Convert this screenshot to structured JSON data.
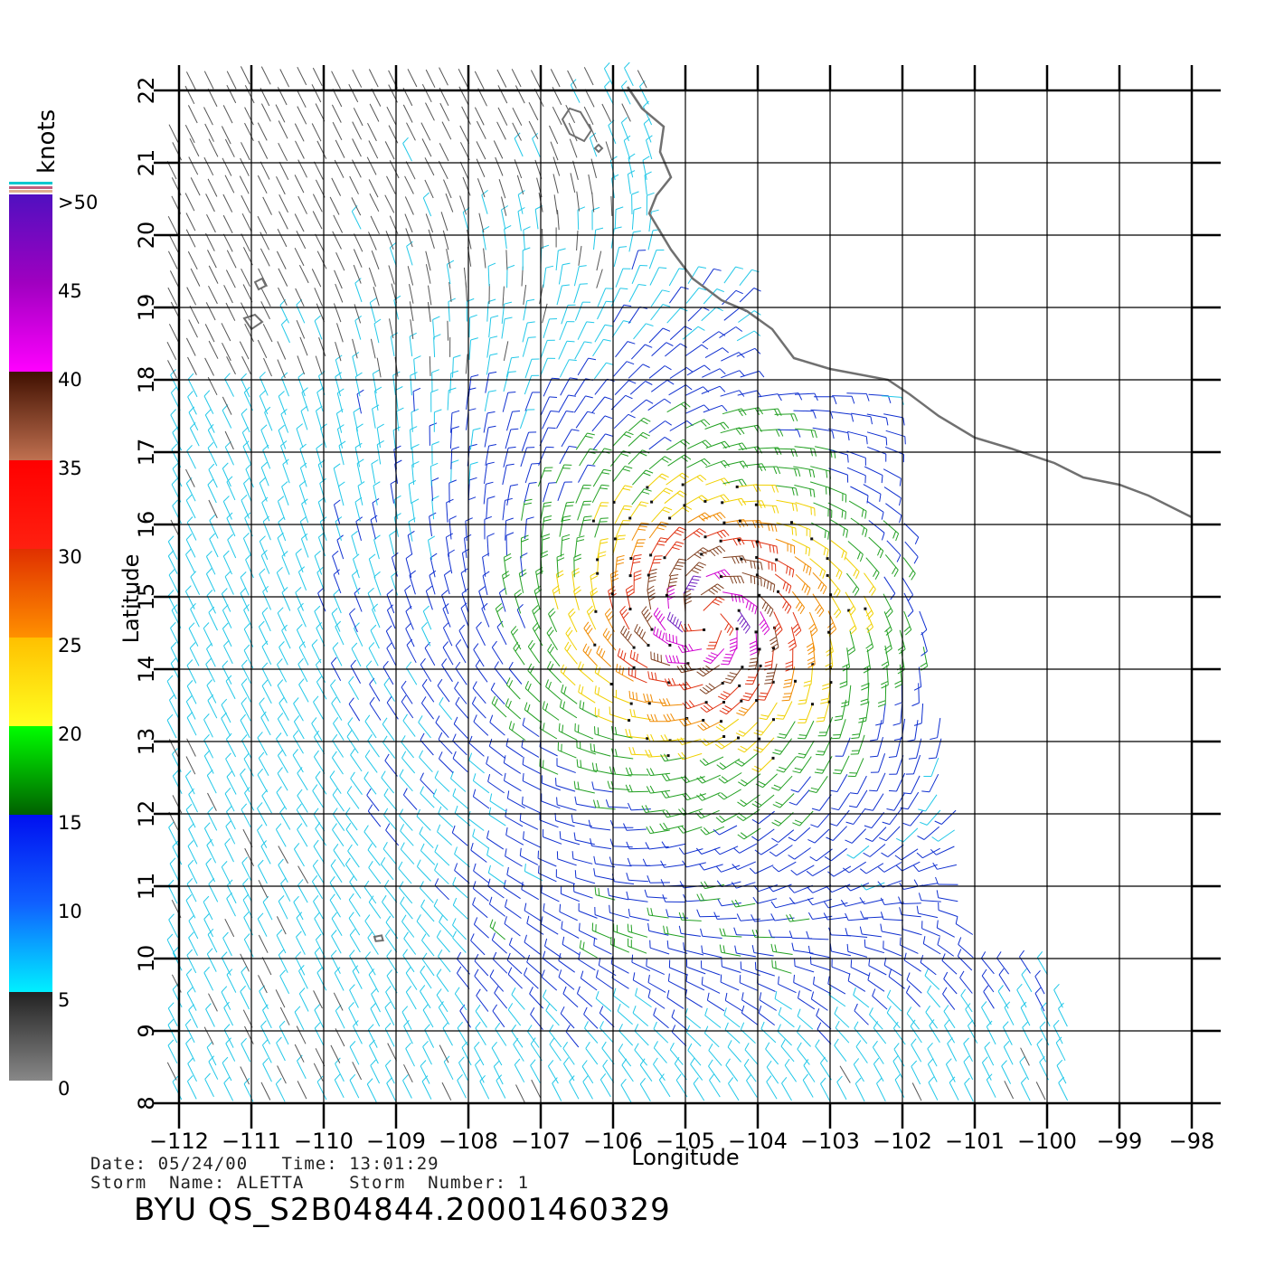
{
  "map": {
    "lon_range": [
      -112,
      -98
    ],
    "lat_range": [
      8,
      22
    ],
    "x_ticks": [
      "-112",
      "-111",
      "-110",
      "-109",
      "-108",
      "-107",
      "-106",
      "-105",
      "-104",
      "-103",
      "-102",
      "-101",
      "-100",
      "-99",
      "-98"
    ],
    "y_ticks": [
      "8",
      "9",
      "10",
      "11",
      "12",
      "13",
      "14",
      "15",
      "16",
      "17",
      "18",
      "19",
      "20",
      "21",
      "22"
    ],
    "xlabel": "Longitude",
    "ylabel": "Latitude",
    "grid": true,
    "storm_center": {
      "lon": -104.7,
      "lat": 14.7
    },
    "coastline_color": "#707070"
  },
  "legend": {
    "unit": "knots",
    "labels": [
      ">50",
      "45",
      "40",
      "35",
      "30",
      "25",
      "20",
      "15",
      "10",
      "5",
      "0"
    ],
    "colors": {
      "calm": "#555555",
      "cyan": "#22c8e8",
      "blue": "#1030d0",
      "green": "#22a022",
      "yellow": "#f0d000",
      "orange": "#f08a00",
      "red": "#e03010",
      "brown": "#804020",
      "magenta": "#d000d0",
      "purple": "#7020c0"
    }
  },
  "info": {
    "line1": "Date: 05/24/00   Time: 13:01:29",
    "line2": "Storm  Name: ALETTA    Storm  Number: 1",
    "product_id": "BYU  QS_S2B04844.20001460329"
  }
}
